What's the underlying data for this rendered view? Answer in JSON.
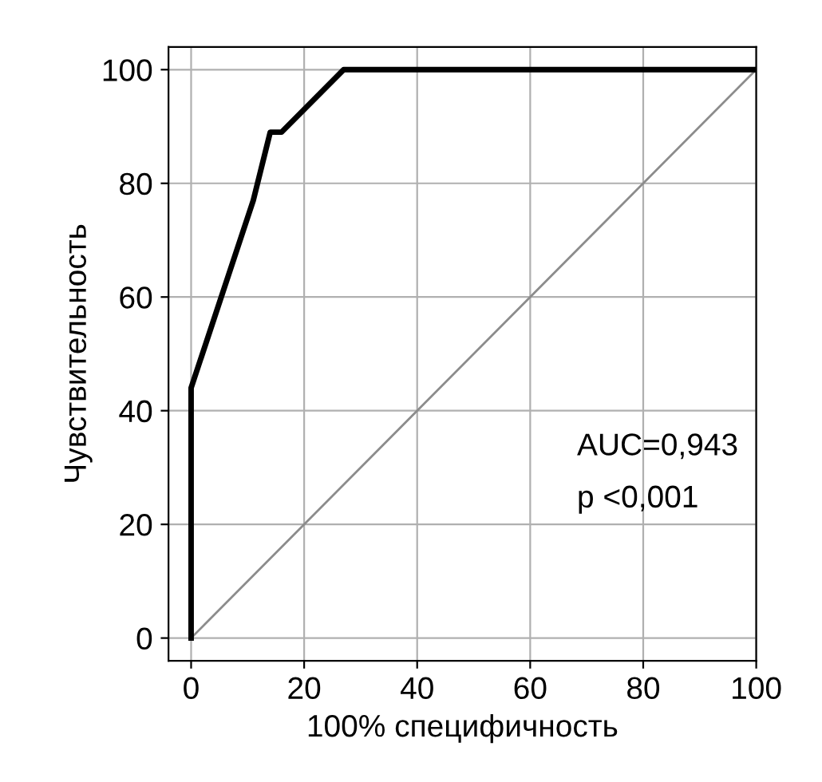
{
  "chart_data": {
    "type": "line",
    "xlabel": "100% специфичность",
    "ylabel": "Чувствительность",
    "xlim": [
      -4,
      100
    ],
    "ylim": [
      -4,
      104
    ],
    "xticks": [
      0,
      20,
      40,
      60,
      80,
      100
    ],
    "yticks": [
      0,
      20,
      40,
      60,
      80,
      100
    ],
    "grid": true,
    "marker": "none",
    "line_style": "solid",
    "series": [
      {
        "x": [
          0,
          0,
          11,
          14,
          16,
          27,
          100
        ],
        "values": [
          0,
          44,
          77,
          89,
          89,
          100,
          100
        ],
        "color": "#000000"
      },
      {
        "x": [
          0,
          100
        ],
        "values": [
          0,
          100
        ],
        "color": "#8c8c8c"
      }
    ],
    "annotations": [
      {
        "text": "AUC=0,943"
      },
      {
        "text": "p <0,001"
      }
    ]
  }
}
